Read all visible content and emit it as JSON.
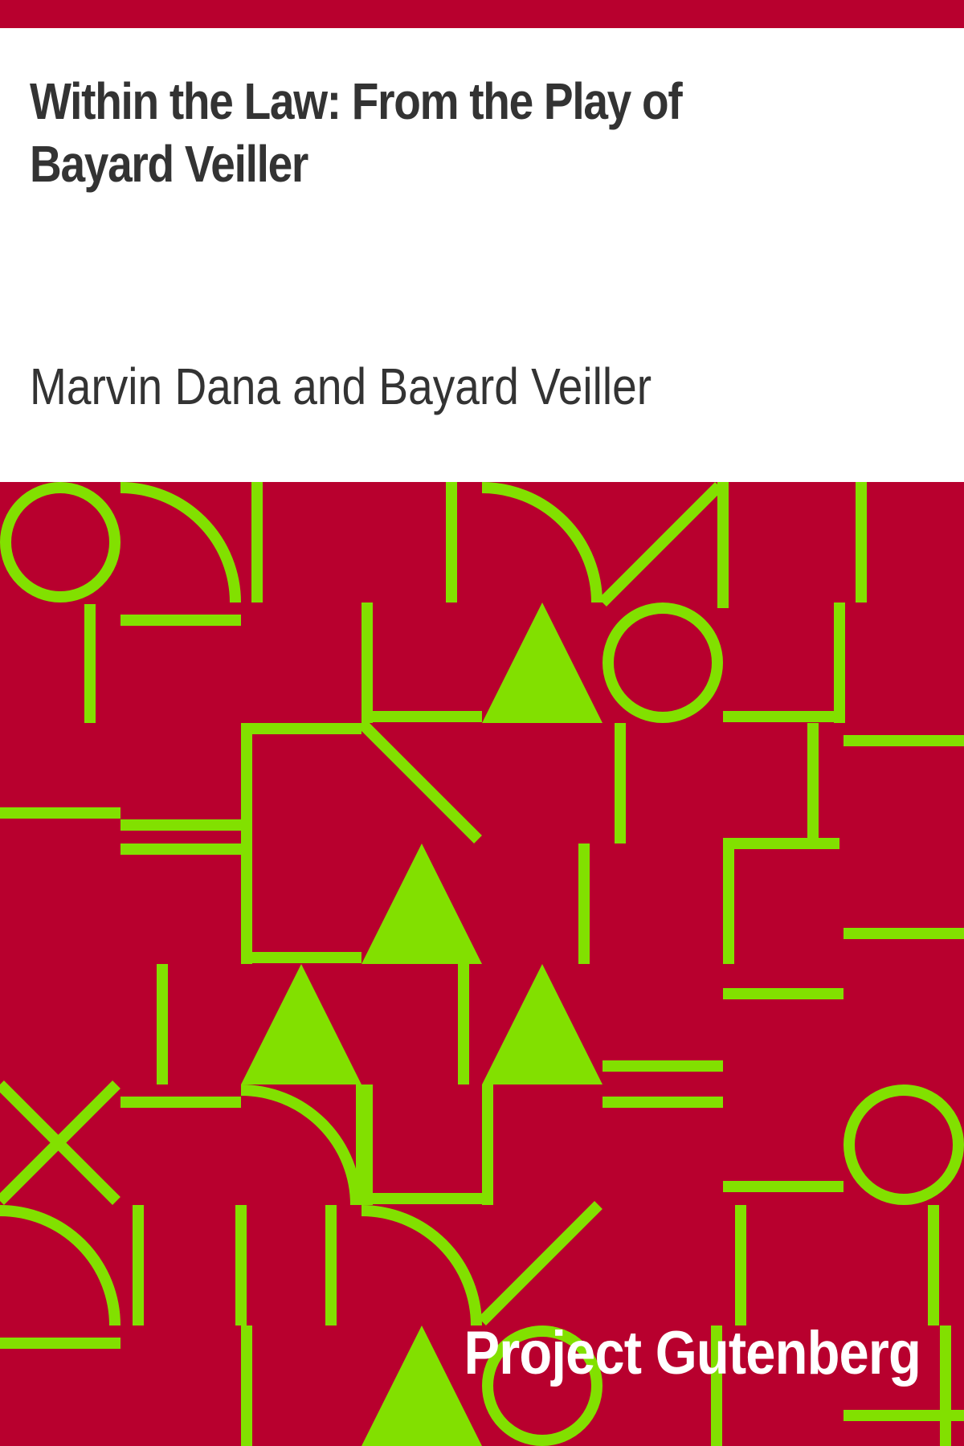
{
  "cover": {
    "title": "Within the Law: From the Play of Bayard Veiller",
    "author": "Marvin Dana and Bayard Veiller",
    "publisher": "Project Gutenberg"
  },
  "colors": {
    "band": "#b8002e",
    "pattern_bg": "#b8002e",
    "pattern_fg": "#82e000",
    "title_text": "#333333",
    "publisher_text": "#ffffff"
  }
}
